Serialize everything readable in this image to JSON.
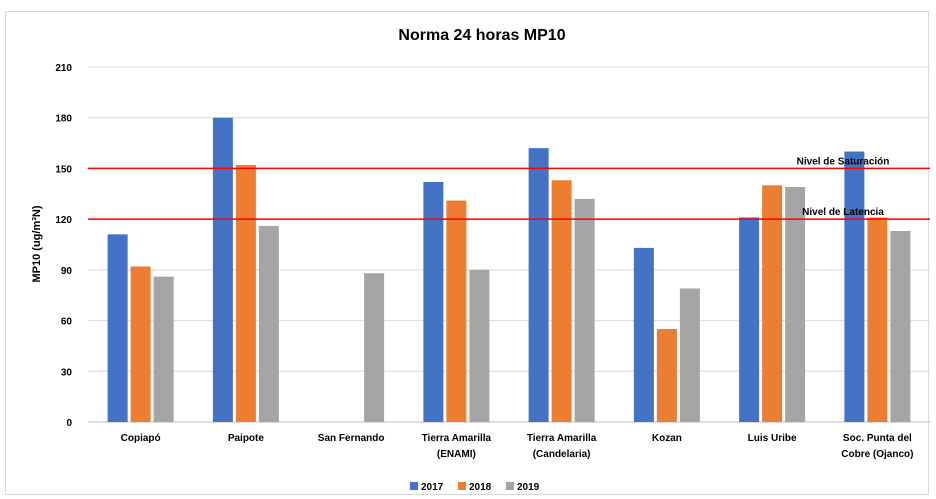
{
  "chart_data": {
    "type": "bar",
    "title": "Norma 24 horas MP10",
    "xlabel": "",
    "ylabel": "MP10 (ug/m³N)",
    "ylim": [
      0,
      210
    ],
    "yticks": [
      0,
      30,
      60,
      90,
      120,
      150,
      180,
      210
    ],
    "grid": true,
    "legend_position": "bottom",
    "categories": [
      [
        "Copiapó"
      ],
      [
        "Paipote"
      ],
      [
        "San Fernando"
      ],
      [
        "Tierra Amarilla",
        "(ENAMI)"
      ],
      [
        "Tierra Amarilla",
        "(Candelaria)"
      ],
      [
        "Kozan"
      ],
      [
        "Luis Uribe"
      ],
      [
        "Soc. Punta del",
        "Cobre (Ojanco)"
      ]
    ],
    "series": [
      {
        "name": "2017",
        "color": "#4472c4",
        "values": [
          111,
          180,
          null,
          142,
          162,
          103,
          121,
          160
        ]
      },
      {
        "name": "2018",
        "color": "#ed7d31",
        "values": [
          92,
          152,
          null,
          131,
          143,
          55,
          140,
          121
        ]
      },
      {
        "name": "2019",
        "color": "#a5a5a5",
        "values": [
          86,
          116,
          88,
          90,
          132,
          79,
          139,
          113
        ]
      }
    ],
    "reference_lines": [
      {
        "label": "Nivel de Saturación",
        "value": 150,
        "color": "#ff0000"
      },
      {
        "label": "Nivel de Latencia",
        "value": 120,
        "color": "#ff0000"
      }
    ]
  }
}
